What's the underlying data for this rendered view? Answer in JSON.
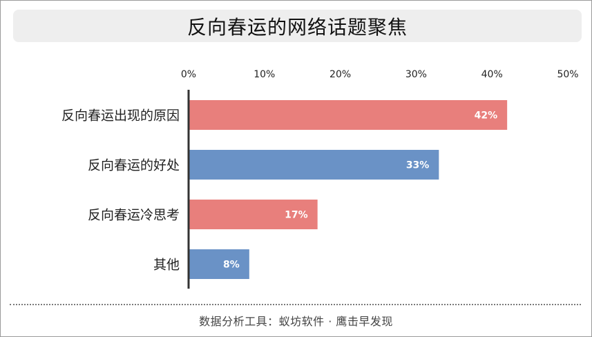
{
  "title": "反向春运的网络话题聚焦",
  "footer": "数据分析工具：蚁坊软件 · 鹰击早发现",
  "colors": {
    "red_bar": "#e87f7c",
    "blue_bar": "#6a92c6",
    "axis": "#333333",
    "label_text": "#222222",
    "value_text": "#ffffff"
  },
  "chart_data": {
    "type": "bar",
    "orientation": "horizontal",
    "categories": [
      "反向春运出现的原因",
      "反向春运的好处",
      "反向春运冷思考",
      "其他"
    ],
    "values": [
      42,
      33,
      17,
      8
    ],
    "value_labels": [
      "42%",
      "33%",
      "17%",
      "8%"
    ],
    "bar_colors": [
      "#e87f7c",
      "#6a92c6",
      "#e87f7c",
      "#6a92c6"
    ],
    "xlim": [
      0,
      50
    ],
    "x_ticks": [
      0,
      10,
      20,
      30,
      40,
      50
    ],
    "x_tick_labels": [
      "0%",
      "10%",
      "20%",
      "30%",
      "40%",
      "50%"
    ],
    "x_axis_position": "top",
    "grid": false,
    "legend": "none"
  }
}
